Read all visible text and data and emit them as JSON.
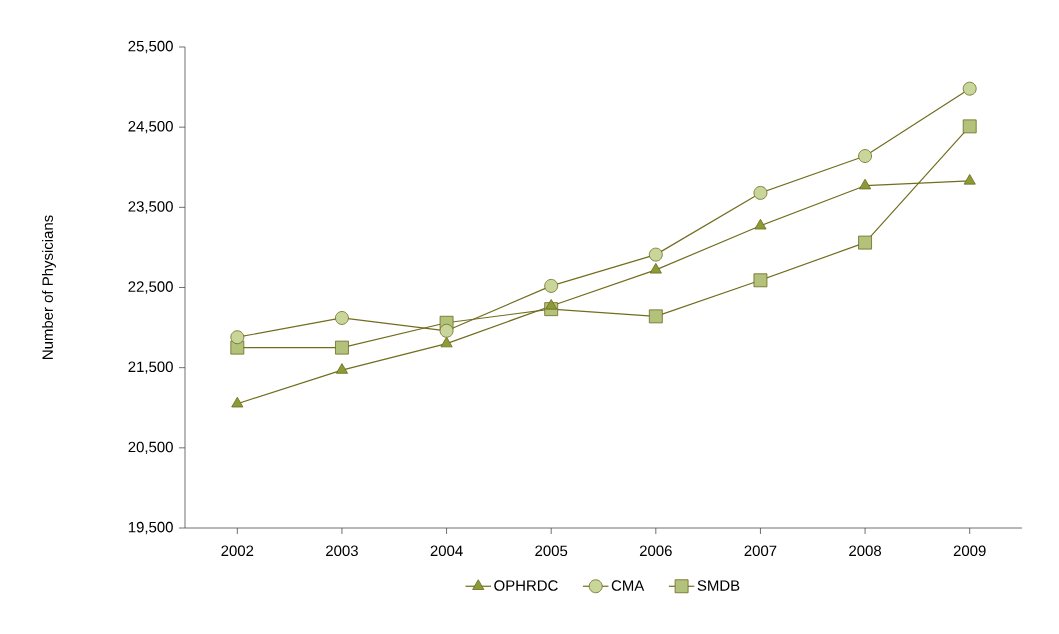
{
  "chart_data": {
    "type": "line",
    "ylabel": "Number of Physicians",
    "categories": [
      "2002",
      "2003",
      "2004",
      "2005",
      "2006",
      "2007",
      "2008",
      "2009"
    ],
    "series": [
      {
        "name": "OPHRDC",
        "color": "#8b9c34",
        "marker": "triangle",
        "values": [
          21050,
          21470,
          21800,
          22270,
          22720,
          23270,
          23770,
          23830
        ]
      },
      {
        "name": "CMA",
        "color": "#c9d699",
        "marker": "circle",
        "values": [
          21880,
          22120,
          21960,
          22520,
          22910,
          23680,
          24140,
          24980
        ]
      },
      {
        "name": "SMDB",
        "color": "#b3c27a",
        "marker": "square",
        "values": [
          21750,
          21750,
          22060,
          22230,
          22140,
          22590,
          23060,
          24510
        ]
      }
    ],
    "ylim": [
      19500,
      25500
    ],
    "yticks": [
      {
        "value": 19500,
        "label": "19,500"
      },
      {
        "value": 20500,
        "label": "20,500"
      },
      {
        "value": 21500,
        "label": "21,500"
      },
      {
        "value": 22500,
        "label": "22,500"
      },
      {
        "value": 23500,
        "label": "23,500"
      },
      {
        "value": 24500,
        "label": "24,500"
      },
      {
        "value": 25500,
        "label": "25,500"
      }
    ],
    "grid": false,
    "legend": "bottom",
    "line_style": "solid"
  }
}
